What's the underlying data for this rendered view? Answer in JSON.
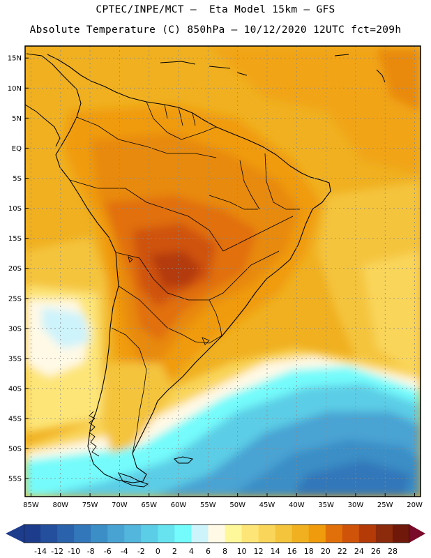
{
  "header": {
    "line1": "CPTEC/INPE/MCT –  Eta Model 15km – GFS",
    "line2": "Absolute Temperature (C) 850hPa – 10/12/2020 12UTC fct=209h"
  },
  "map": {
    "lat_labels": [
      "15N",
      "10N",
      "5N",
      "EQ",
      "5S",
      "10S",
      "15S",
      "20S",
      "25S",
      "30S",
      "35S",
      "40S",
      "45S",
      "50S",
      "55S"
    ],
    "lon_labels": [
      "85W",
      "80W",
      "75W",
      "70W",
      "65W",
      "60W",
      "55W",
      "50W",
      "45W",
      "40W",
      "35W",
      "30W",
      "25W",
      "20W"
    ],
    "lon_values": [
      -85,
      -80,
      -75,
      -70,
      -65,
      -60,
      -55,
      -50,
      -45,
      -40,
      -35,
      -30,
      -25,
      -20
    ],
    "lat_values": [
      15,
      10,
      5,
      0,
      -5,
      -10,
      -15,
      -20,
      -25,
      -30,
      -35,
      -40,
      -45,
      -50,
      -55
    ],
    "lon_range": [
      -86,
      -19
    ],
    "lat_range": [
      17,
      -58
    ],
    "grid_color": "#8a8a8a",
    "coast_color": "#000000"
  },
  "colorbar": {
    "labels": [
      "-14",
      "-12",
      "-10",
      "-8",
      "-6",
      "-4",
      "-2",
      "0",
      "2",
      "4",
      "6",
      "8",
      "10",
      "12",
      "14",
      "16",
      "18",
      "20",
      "22",
      "24",
      "26",
      "28"
    ],
    "colors": [
      "#1e3c8c",
      "#234f9c",
      "#2a63ab",
      "#3177b9",
      "#3b8ec6",
      "#48a3d3",
      "#52b6dd",
      "#5ccde6",
      "#66e3ef",
      "#74fbfb",
      "#cdf3fb",
      "#fff9e6",
      "#fff89a",
      "#fde578",
      "#f9d55a",
      "#f4c43c",
      "#f0b020",
      "#f09b0c",
      "#e1700a",
      "#cf5308",
      "#b43a08",
      "#8c2a0c",
      "#70180a"
    ],
    "under_color": "#1e3c8c",
    "over_color": "#7a0a2a"
  }
}
